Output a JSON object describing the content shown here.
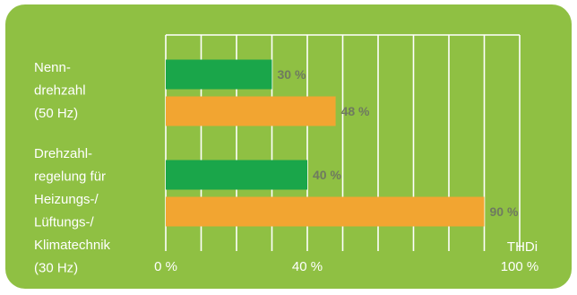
{
  "chart_data": {
    "type": "bar",
    "orientation": "horizontal",
    "categories": [
      [
        "Nenn-",
        "drehzahl",
        "(50 Hz)"
      ],
      [
        "Drehzahl-",
        "regelung für",
        "Heizungs-/",
        "Lüftungs-/",
        "Klimatechnik",
        "(30 Hz)"
      ]
    ],
    "series": [
      {
        "color": "#1aa64a",
        "values": [
          30,
          40
        ],
        "labels": [
          "30 %",
          "40 %"
        ]
      },
      {
        "color": "#f2a531",
        "values": [
          48,
          90
        ],
        "labels": [
          "48 %",
          "90 %"
        ]
      }
    ],
    "xlim": [
      0,
      100
    ],
    "xticks": [
      {
        "value": 0,
        "label": "0 %"
      },
      {
        "value": 40,
        "label": "40 %"
      },
      {
        "value": 100,
        "label": "100 %"
      }
    ],
    "gridlines_every": 10,
    "xlabel": "THDi",
    "grid": true
  },
  "colors": {
    "panel_background": "#8fc043",
    "plot_background": "#8fc043",
    "gridline": "#ffffff",
    "text": "#ffffff",
    "value_label": "#6f7a60"
  }
}
